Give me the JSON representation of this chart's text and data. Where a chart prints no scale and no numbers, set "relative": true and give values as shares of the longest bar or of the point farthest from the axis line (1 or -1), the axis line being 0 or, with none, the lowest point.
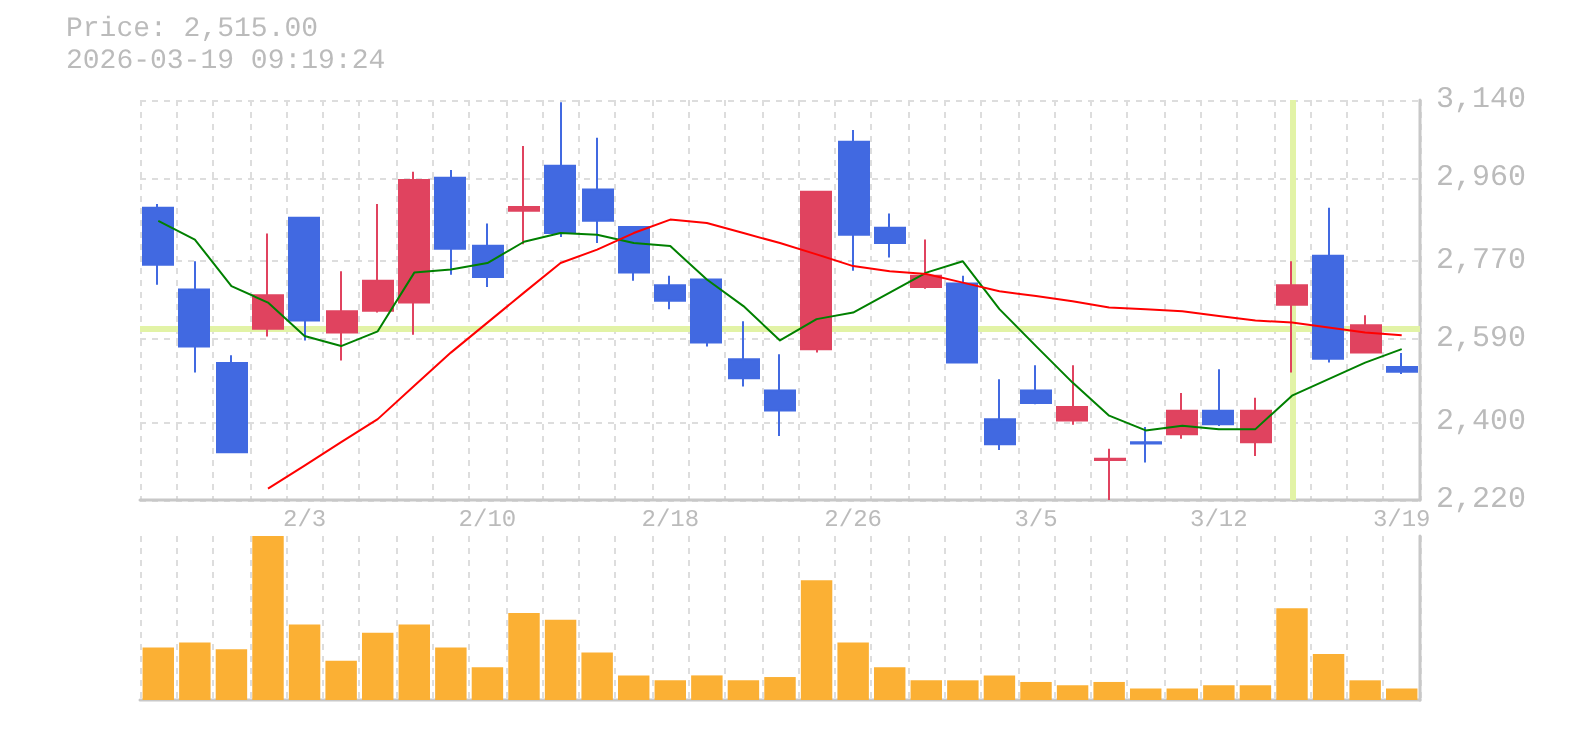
{
  "chart_data": [
    {
      "type": "candlestick",
      "title": "Price: 2,515.00",
      "subtitle": "2026-03-19 09:19:24",
      "categories": [
        null,
        null,
        null,
        null,
        "2/3",
        null,
        null,
        null,
        null,
        "2/10",
        null,
        null,
        null,
        null,
        "2/18",
        null,
        null,
        null,
        null,
        "2/26",
        null,
        null,
        null,
        null,
        "3/5",
        null,
        null,
        null,
        null,
        "3/12",
        null,
        null,
        null,
        null,
        "3/19"
      ],
      "ohlc": [
        [
          2892,
          2901,
          2715,
          2761
        ],
        [
          2704,
          2769,
          2513,
          2573
        ],
        [
          2535,
          2553,
          2330,
          2330
        ],
        [
          2614,
          2833,
          2596,
          2691
        ],
        [
          2869,
          2869,
          2587,
          2633
        ],
        [
          2605,
          2746,
          2541,
          2654
        ],
        [
          2655,
          2901,
          2651,
          2724
        ],
        [
          2674,
          2975,
          2600,
          2956
        ],
        [
          2961,
          2979,
          2738,
          2798
        ],
        [
          2805,
          2856,
          2710,
          2733
        ],
        [
          2885,
          3034,
          2808,
          2894
        ],
        [
          2989,
          3135,
          2825,
          2834
        ],
        [
          2934,
          3053,
          2811,
          2862
        ],
        [
          2848,
          2848,
          2724,
          2743
        ],
        [
          2714,
          2736,
          2659,
          2678
        ],
        [
          2727,
          2727,
          2573,
          2582
        ],
        [
          2544,
          2631,
          2481,
          2500
        ],
        [
          2472,
          2555,
          2367,
          2426
        ],
        [
          2567,
          2929,
          2559,
          2929
        ],
        [
          3044,
          3071,
          2747,
          2830
        ],
        [
          2846,
          2879,
          2778,
          2811
        ],
        [
          2710,
          2819,
          2706,
          2736
        ],
        [
          2718,
          2736,
          2536,
          2536
        ],
        [
          2406,
          2498,
          2335,
          2348
        ],
        [
          2472,
          2530,
          2440,
          2443
        ],
        [
          2403,
          2530,
          2393,
          2434
        ],
        [
          2312,
          2338,
          2220,
          2315
        ],
        [
          2353,
          2388,
          2306,
          2350
        ],
        [
          2371,
          2466,
          2361,
          2425
        ],
        [
          2425,
          2521,
          2390,
          2394
        ],
        [
          2353,
          2455,
          2321,
          2425
        ],
        [
          2669,
          2769,
          2513,
          2714
        ],
        [
          2782,
          2892,
          2536,
          2545
        ],
        [
          2559,
          2645,
          2559,
          2622
        ],
        [
          2526,
          2558,
          2510,
          2515
        ]
      ],
      "colors": [
        "#4169e1",
        "#4169e1",
        "#4169e1",
        "#e0435f",
        "#4169e1",
        "#e0435f",
        "#e0435f",
        "#e0435f",
        "#4169e1",
        "#4169e1",
        "#e0435f",
        "#4169e1",
        "#4169e1",
        "#4169e1",
        "#4169e1",
        "#4169e1",
        "#4169e1",
        "#4169e1",
        "#e0435f",
        "#4169e1",
        "#4169e1",
        "#e0435f",
        "#4169e1",
        "#4169e1",
        "#4169e1",
        "#e0435f",
        "#e0435f",
        "#4169e1",
        "#e0435f",
        "#4169e1",
        "#e0435f",
        "#e0435f",
        "#4169e1",
        "#e0435f",
        "#4169e1"
      ],
      "series": [
        {
          "type": "line",
          "color": "#008000",
          "values": [
            2862,
            2819,
            2712,
            2674,
            2597,
            2574,
            2608,
            2743,
            2750,
            2765,
            2814,
            2834,
            2830,
            2811,
            2804,
            2727,
            2666,
            2587,
            2636,
            2651,
            2697,
            2743,
            2769,
            2659,
            2574,
            2490,
            2414,
            2380,
            2391,
            2383,
            2383,
            2460,
            2498,
            2536,
            2567
          ]
        },
        {
          "type": "line",
          "color": "#ff0000",
          "values": [
            null,
            null,
            null,
            2246,
            2299,
            2353,
            2406,
            2483,
            2559,
            2628,
            2697,
            2765,
            2796,
            2834,
            2865,
            2857,
            2834,
            2811,
            2785,
            2758,
            2746,
            2740,
            2720,
            2700,
            2689,
            2677,
            2663,
            2659,
            2654,
            2643,
            2633,
            2628,
            2617,
            2605,
            2599
          ]
        }
      ],
      "ylim": [
        2220,
        3140
      ],
      "yticks": [
        {
          "value": 2220,
          "label": "2,220"
        },
        {
          "value": 2400,
          "label": "2,400"
        },
        {
          "value": 2590,
          "label": "2,590"
        },
        {
          "value": 2770,
          "label": "2,770"
        },
        {
          "value": 2960,
          "label": "2,960"
        },
        {
          "value": 3140,
          "label": "3,140"
        }
      ],
      "ref_lines": [
        {
          "axis": "y",
          "value": 2616,
          "color": "#e2f3a6"
        }
      ],
      "grid": true,
      "marker": "none"
    },
    {
      "type": "bar",
      "relative": true,
      "color": "#fbb034",
      "grid": "x",
      "categories": [
        null,
        null,
        null,
        null,
        null,
        null,
        null,
        null,
        null,
        null,
        null,
        null,
        null,
        null,
        null,
        null,
        null,
        null,
        null,
        null,
        null,
        null,
        null,
        null,
        null,
        null,
        null,
        null,
        null,
        null,
        null,
        null,
        null,
        null,
        null
      ],
      "values": [
        0.32,
        0.35,
        0.31,
        1,
        0.46,
        0.24,
        0.41,
        0.46,
        0.32,
        0.2,
        0.53,
        0.49,
        0.29,
        0.15,
        0.12,
        0.15,
        0.12,
        0.14,
        0.73,
        0.35,
        0.2,
        0.12,
        0.12,
        0.15,
        0.11,
        0.09,
        0.11,
        0.07,
        0.07,
        0.09,
        0.09,
        0.56,
        0.28,
        0.12,
        0.07
      ]
    }
  ]
}
